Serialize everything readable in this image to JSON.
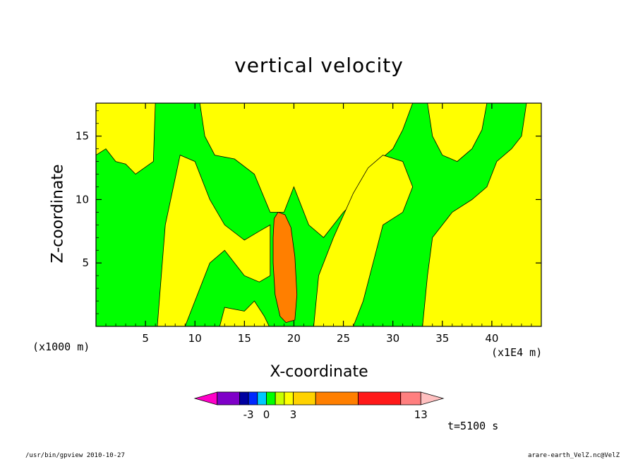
{
  "chart_data": {
    "type": "heatmap",
    "title": "vertical velocity",
    "xlabel": "X-coordinate",
    "ylabel": "Z-coordinate",
    "x_unit_left": "(x1000 m)",
    "x_unit_right": "(x1E4 m)",
    "xlim": [
      0,
      45
    ],
    "ylim": [
      0,
      17.6
    ],
    "x_ticks": [
      5,
      10,
      15,
      20,
      25,
      30,
      35,
      40
    ],
    "y_ticks": [
      5,
      10,
      15
    ],
    "background_color": "#00ff00",
    "regions": [
      {
        "level": "0 to 0.5",
        "color": "#ffff00",
        "shape": "upper-left plume",
        "points": [
          [
            0,
            17.6
          ],
          [
            6,
            17.6
          ],
          [
            5.8,
            13
          ],
          [
            4,
            12
          ],
          [
            3,
            12.8
          ],
          [
            2,
            13
          ],
          [
            1,
            14
          ],
          [
            0,
            13.5
          ]
        ]
      },
      {
        "level": "0 to 0.5",
        "color": "#ffff00",
        "shape": "left updraft column",
        "points": [
          [
            6.2,
            0
          ],
          [
            7,
            8
          ],
          [
            8.5,
            13.5
          ],
          [
            10,
            13
          ],
          [
            11.5,
            10
          ],
          [
            13,
            8
          ],
          [
            15,
            6.8
          ],
          [
            16.5,
            7.5
          ],
          [
            17.6,
            8
          ],
          [
            17.6,
            4
          ],
          [
            16.5,
            3.5
          ],
          [
            15,
            4
          ],
          [
            13,
            6
          ],
          [
            11.5,
            5
          ],
          [
            10,
            2
          ],
          [
            9,
            0
          ]
        ]
      },
      {
        "level": "0 to 0.5",
        "color": "#ffff00",
        "shape": "upper-center fans",
        "points": [
          [
            10.5,
            17.6
          ],
          [
            11,
            15
          ],
          [
            12,
            13.5
          ],
          [
            14,
            13.2
          ],
          [
            16,
            12
          ],
          [
            17.6,
            9
          ],
          [
            19,
            9
          ],
          [
            20,
            11
          ],
          [
            21.5,
            8
          ],
          [
            23,
            7
          ],
          [
            25,
            9
          ],
          [
            27.5,
            11
          ],
          [
            28.5,
            13
          ],
          [
            30,
            14
          ],
          [
            31,
            15.5
          ],
          [
            32,
            17.6
          ]
        ]
      },
      {
        "level": "0 to 0.5",
        "color": "#ffff00",
        "shape": "right-center plume",
        "points": [
          [
            22,
            0
          ],
          [
            22.5,
            4
          ],
          [
            24,
            7
          ],
          [
            26,
            10.5
          ],
          [
            27.5,
            12.5
          ],
          [
            29,
            13.5
          ],
          [
            31,
            13
          ],
          [
            32,
            11
          ],
          [
            31,
            9
          ],
          [
            29,
            8
          ],
          [
            28,
            5
          ],
          [
            27,
            2
          ],
          [
            26,
            0
          ]
        ]
      },
      {
        "level": "0 to 0.5",
        "color": "#ffff00",
        "shape": "lower-center patch",
        "points": [
          [
            12.5,
            0
          ],
          [
            13,
            1.5
          ],
          [
            15,
            1.2
          ],
          [
            16,
            2
          ],
          [
            17,
            0.8
          ],
          [
            17.5,
            0
          ]
        ]
      },
      {
        "level": "0 to 0.5",
        "color": "#ffff00",
        "shape": "right band",
        "points": [
          [
            33,
            0
          ],
          [
            33.5,
            4
          ],
          [
            34,
            7
          ],
          [
            36,
            9
          ],
          [
            38,
            10
          ],
          [
            39.5,
            11
          ],
          [
            40.5,
            13
          ],
          [
            42,
            14
          ],
          [
            43,
            15
          ],
          [
            43.5,
            17.6
          ],
          [
            45,
            17.6
          ],
          [
            45,
            0
          ]
        ]
      },
      {
        "level": "0 to 0.5",
        "color": "#ffff00",
        "shape": "top-right patch",
        "points": [
          [
            33.5,
            17.6
          ],
          [
            34,
            15
          ],
          [
            35,
            13.5
          ],
          [
            36.5,
            13
          ],
          [
            38,
            14
          ],
          [
            39,
            15.5
          ],
          [
            39.5,
            17.6
          ]
        ]
      },
      {
        "level": "1 to 5",
        "color": "#ff7f00",
        "shape": "convective core",
        "points": [
          [
            18,
            8.5
          ],
          [
            18.4,
            9
          ],
          [
            19.1,
            8.8
          ],
          [
            19.7,
            7.8
          ],
          [
            20.1,
            5.5
          ],
          [
            20.3,
            2.5
          ],
          [
            20.1,
            0.5
          ],
          [
            19.2,
            0.3
          ],
          [
            18.6,
            0.8
          ],
          [
            18.1,
            2.5
          ],
          [
            17.9,
            5
          ],
          [
            17.9,
            7
          ]
        ]
      }
    ],
    "legend": {
      "tick_labels": [
        "-3",
        "0",
        "3",
        "13"
      ],
      "colors": [
        "#ff00c8",
        "#7f00c8",
        "#0000a0",
        "#0028ff",
        "#00c8ff",
        "#00ff00",
        "#c8ff00",
        "#ffff00",
        "#ffd200",
        "#ff7f00",
        "#ff1919",
        "#ff7f7f",
        "#ffc0c0"
      ],
      "bar_widths": [
        1,
        1,
        0.4,
        0.4,
        0.4,
        0.4,
        0.4,
        0.4,
        1,
        1.9,
        1.9,
        0.9,
        1
      ]
    }
  },
  "time_label": "t=5100 s",
  "footer_left": "/usr/bin/gpview   2010-10-27",
  "footer_right": "arare-earth_VelZ.nc@VelZ"
}
